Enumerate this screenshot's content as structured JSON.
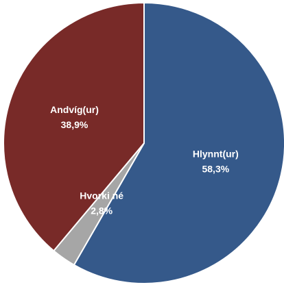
{
  "chart_data": {
    "type": "pie",
    "categories": [
      "Hlynnt(ur)",
      "Hvorki né",
      "Andvíg(ur)"
    ],
    "values": [
      58.3,
      2.8,
      38.9
    ],
    "value_labels": [
      "58,3%",
      "2,8%",
      "38,9%"
    ],
    "colors": [
      "#35598a",
      "#a6a6a6",
      "#782a28"
    ]
  }
}
